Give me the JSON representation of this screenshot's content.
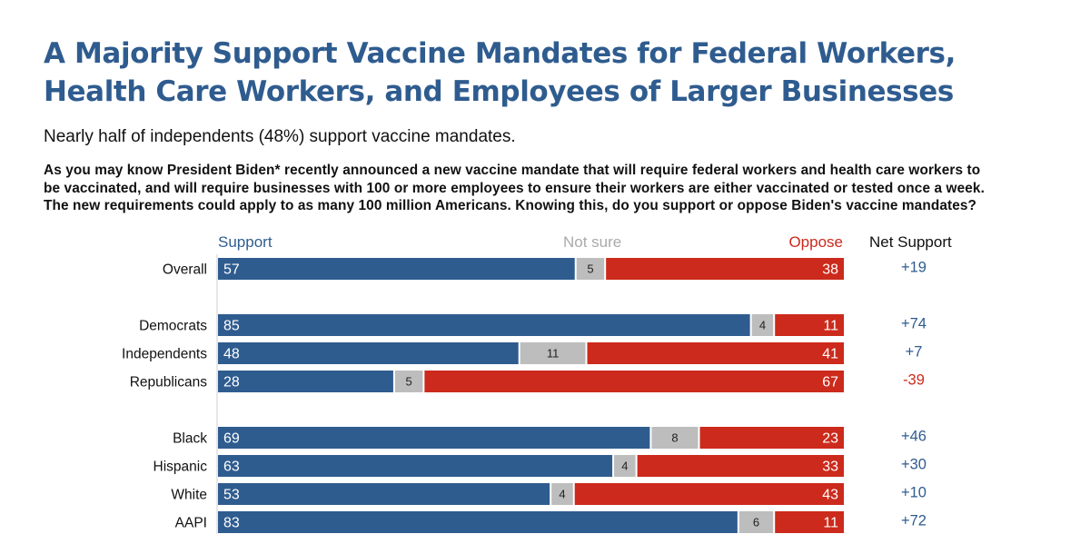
{
  "title_lines": [
    "A Majority Support Vaccine Mandates for Federal Workers,",
    "Health Care Workers, and Employees of Larger Businesses"
  ],
  "subtitle": "Nearly half of independents (48%) support vaccine mandates.",
  "question_lines": [
    "As you may know President Biden* recently announced a new vaccine mandate that will require federal workers and health care workers to",
    "be vaccinated, and will require businesses with 100 or more employees to ensure their workers are either vaccinated or tested once a week.",
    "The new requirements could apply to as many 100 million Americans. Knowing this, do you support or oppose Biden's vaccine mandates?"
  ],
  "colors": {
    "support": "#2f5c8f",
    "not_sure": "#bdbdbd",
    "oppose": "#cc2a1c",
    "net_positive": "#2f5c8f",
    "net_negative": "#cc2a1c"
  },
  "chart_data": {
    "type": "bar",
    "orientation": "horizontal",
    "stacked": true,
    "column_headers": {
      "support": "Support",
      "not_sure": "Not sure",
      "oppose": "Oppose",
      "net": "Net Support"
    },
    "rows": [
      {
        "group": 0,
        "label": "Overall",
        "support": 57,
        "not_sure": 5,
        "oppose": 38,
        "net": "+19"
      },
      {
        "group": 1,
        "label": "Democrats",
        "support": 85,
        "not_sure": 4,
        "oppose": 11,
        "net": "+74"
      },
      {
        "group": 1,
        "label": "Independents",
        "support": 48,
        "not_sure": 11,
        "oppose": 41,
        "net": "+7"
      },
      {
        "group": 1,
        "label": "Republicans",
        "support": 28,
        "not_sure": 5,
        "oppose": 67,
        "net": "-39"
      },
      {
        "group": 2,
        "label": "Black",
        "support": 69,
        "not_sure": 8,
        "oppose": 23,
        "net": "+46"
      },
      {
        "group": 2,
        "label": "Hispanic",
        "support": 63,
        "not_sure": 4,
        "oppose": 33,
        "net": "+30"
      },
      {
        "group": 2,
        "label": "White",
        "support": 53,
        "not_sure": 4,
        "oppose": 43,
        "net": "+10"
      },
      {
        "group": 2,
        "label": "AAPI",
        "support": 83,
        "not_sure": 6,
        "oppose": 11,
        "net": "+72"
      }
    ],
    "xlim": [
      0,
      100
    ]
  }
}
